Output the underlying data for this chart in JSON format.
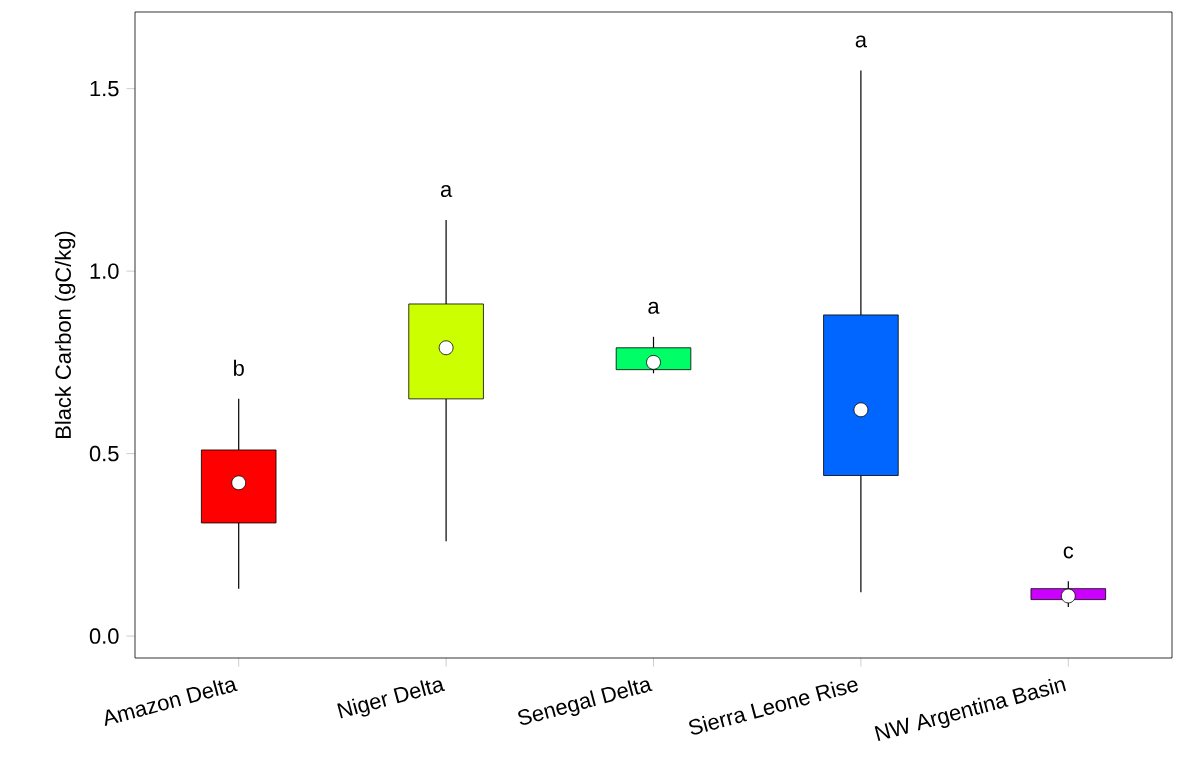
{
  "chart_data": {
    "type": "box",
    "ylabel": "Black Carbon (gC/kg)",
    "categories": [
      "Amazon Delta",
      "Niger Delta",
      "Senegal Delta",
      "Sierra Leone Rise",
      "NW Argentina Basin"
    ],
    "colors": [
      "#ff0000",
      "#ccff00",
      "#00ff66",
      "#0066ff",
      "#cc00ff"
    ],
    "boxes": [
      {
        "low": 0.13,
        "q1": 0.31,
        "median": 0.42,
        "q3": 0.51,
        "high": 0.65
      },
      {
        "low": 0.26,
        "q1": 0.65,
        "median": 0.79,
        "q3": 0.91,
        "high": 1.14
      },
      {
        "low": 0.72,
        "q1": 0.73,
        "median": 0.75,
        "q3": 0.79,
        "high": 0.82
      },
      {
        "low": 0.12,
        "q1": 0.44,
        "median": 0.62,
        "q3": 0.88,
        "high": 1.55
      },
      {
        "low": 0.08,
        "q1": 0.1,
        "median": 0.11,
        "q3": 0.13,
        "high": 0.15
      }
    ],
    "ylim": [
      -0.06,
      1.71
    ],
    "yticks": [
      {
        "value": 0,
        "label": "0.0"
      },
      {
        "value": 0.5,
        "label": "0.5"
      },
      {
        "value": 1.0,
        "label": "1.0"
      },
      {
        "value": 1.5,
        "label": "1.5"
      }
    ],
    "annotations": [
      "b",
      "a",
      "a",
      "a",
      "c"
    ]
  }
}
